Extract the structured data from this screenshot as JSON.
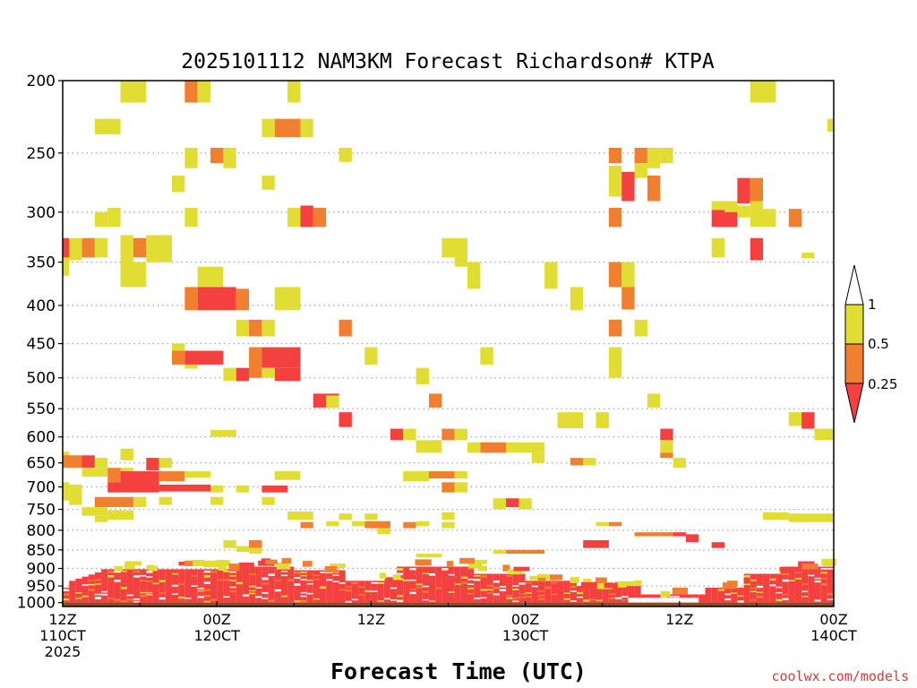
{
  "chart_data": {
    "type": "heatmap",
    "title": "2025101112 NAM3KM Forecast Richardson# KTPA",
    "xlabel": "Forecast Time (UTC)",
    "ylabel": "",
    "credit": "coolwx.com/models",
    "x_unit": "forecast hour",
    "xlim": [
      0,
      60
    ],
    "ylim": [
      200,
      1012
    ],
    "y_scale": "log-pressure (inverted)",
    "y_ticks": [
      200,
      250,
      300,
      350,
      400,
      450,
      500,
      550,
      600,
      650,
      700,
      750,
      800,
      850,
      900,
      950,
      1000
    ],
    "x_ticks": [
      {
        "hour": 0,
        "lines": [
          "12Z",
          "110CT",
          "2025"
        ]
      },
      {
        "hour": 12,
        "lines": [
          "00Z",
          "120CT"
        ]
      },
      {
        "hour": 24,
        "lines": [
          "12Z"
        ]
      },
      {
        "hour": 36,
        "lines": [
          "00Z",
          "130CT"
        ]
      },
      {
        "hour": 48,
        "lines": [
          "12Z"
        ]
      },
      {
        "hour": 60,
        "lines": [
          "00Z",
          "140CT"
        ]
      }
    ],
    "colors": {
      "lt025": "#f54040",
      "c025_05": "#f08030",
      "c05_1": "#e1dd32",
      "ground": "#8b4c28",
      "grid": "#9a9a9a"
    },
    "legend": {
      "labels": [
        "1",
        "0.5",
        "0.25"
      ],
      "bins": [
        {
          "name": "< 0.25",
          "color": "#f54040"
        },
        {
          "name": "0.25 - 0.5",
          "color": "#f08030"
        },
        {
          "name": "0.5 - 1",
          "color": "#e1dd32"
        },
        {
          "name": "> 1",
          "color": "#ffffff"
        }
      ]
    },
    "ground_level_hPa": 1000,
    "category_key": {
      "r": "Ri < 0.25",
      "o": "0.25 <= Ri < 0.5",
      "y": "0.5 <= Ri < 1"
    },
    "cells": [
      [
        "y",
        4.5,
        6.5,
        200,
        214
      ],
      [
        "o",
        9.5,
        10.5,
        200,
        214
      ],
      [
        "y",
        10.5,
        11.5,
        200,
        214
      ],
      [
        "y",
        17.5,
        18.5,
        200,
        214
      ],
      [
        "y",
        53.5,
        55.5,
        200,
        214
      ],
      [
        "y",
        2.5,
        4.5,
        225,
        236
      ],
      [
        "y",
        15.5,
        16.5,
        225,
        238
      ],
      [
        "o",
        16.5,
        18.5,
        225,
        238
      ],
      [
        "y",
        18.5,
        19.5,
        225,
        238
      ],
      [
        "y",
        59.5,
        60,
        225,
        234
      ],
      [
        "y",
        9.5,
        10.5,
        246,
        262
      ],
      [
        "o",
        11.5,
        12.5,
        246,
        258
      ],
      [
        "y",
        12.5,
        13.5,
        246,
        262
      ],
      [
        "y",
        21.5,
        22.5,
        246,
        257
      ],
      [
        "y",
        8.5,
        9.5,
        268,
        282
      ],
      [
        "y",
        15.5,
        16.5,
        268,
        280
      ],
      [
        "o",
        42.5,
        43.5,
        246,
        258
      ],
      [
        "y",
        42.5,
        43.5,
        260,
        286
      ],
      [
        "r",
        43.5,
        44.5,
        265,
        290
      ],
      [
        "o",
        44.5,
        45.5,
        246,
        258
      ],
      [
        "y",
        44.5,
        45.5,
        258,
        270
      ],
      [
        "o",
        45.5,
        46.5,
        268,
        290
      ],
      [
        "y",
        45.5,
        46.5,
        246,
        262
      ],
      [
        "y",
        46.5,
        47.5,
        246,
        258
      ],
      [
        "y",
        50.5,
        52.5,
        290,
        298
      ],
      [
        "r",
        50.5,
        52.5,
        298,
        314
      ],
      [
        "y",
        51.5,
        52.5,
        290,
        300
      ],
      [
        "r",
        52.5,
        53.5,
        270,
        292
      ],
      [
        "o",
        53.5,
        54.5,
        270,
        290
      ],
      [
        "y",
        52.5,
        53.5,
        294,
        305
      ],
      [
        "y",
        53.5,
        54.5,
        290,
        314
      ],
      [
        "y",
        54.5,
        55.5,
        297,
        314
      ],
      [
        "o",
        56.5,
        57.5,
        297,
        314
      ],
      [
        "y",
        2.5,
        3.5,
        300,
        314
      ],
      [
        "y",
        3.5,
        4.5,
        296,
        314
      ],
      [
        "y",
        9.5,
        10.5,
        296,
        314
      ],
      [
        "y",
        17.5,
        18.5,
        296,
        314
      ],
      [
        "r",
        18.5,
        19.5,
        294,
        314
      ],
      [
        "o",
        19.5,
        20.5,
        296,
        314
      ],
      [
        "o",
        42.5,
        43.5,
        296,
        314
      ],
      [
        "r",
        0,
        0.5,
        325,
        345
      ],
      [
        "y",
        0.5,
        1.5,
        325,
        348
      ],
      [
        "o",
        1.5,
        2.5,
        325,
        345
      ],
      [
        "y",
        2.5,
        3.5,
        325,
        345
      ],
      [
        "y",
        4.5,
        5.5,
        322,
        350
      ],
      [
        "o",
        5.5,
        6.5,
        325,
        345
      ],
      [
        "y",
        6.5,
        8.5,
        322,
        350
      ],
      [
        "y",
        0,
        0.5,
        345,
        365
      ],
      [
        "y",
        4.5,
        6.5,
        350,
        378
      ],
      [
        "y",
        29.5,
        31.5,
        325,
        345
      ],
      [
        "y",
        30.5,
        31.5,
        345,
        355
      ],
      [
        "y",
        31.5,
        32.5,
        350,
        380
      ],
      [
        "y",
        37.5,
        38.5,
        350,
        380
      ],
      [
        "y",
        50.5,
        51.5,
        325,
        345
      ],
      [
        "r",
        53.5,
        54.5,
        325,
        348
      ],
      [
        "y",
        57.5,
        58.5,
        340,
        346
      ],
      [
        "o",
        42.5,
        43.5,
        350,
        378
      ],
      [
        "y",
        43.5,
        44.5,
        350,
        380
      ],
      [
        "o",
        43.5,
        44.5,
        378,
        405
      ],
      [
        "y",
        10.5,
        12.5,
        355,
        378
      ],
      [
        "o",
        9.5,
        10.5,
        378,
        406
      ],
      [
        "r",
        10.5,
        13.5,
        378,
        406
      ],
      [
        "o",
        13.5,
        14.5,
        380,
        406
      ],
      [
        "y",
        16.5,
        18.5,
        378,
        406
      ],
      [
        "y",
        39.5,
        40.5,
        378,
        406
      ],
      [
        "y",
        13.5,
        14.5,
        418,
        440
      ],
      [
        "o",
        14.5,
        15.5,
        418,
        440
      ],
      [
        "y",
        15.5,
        16.5,
        418,
        440
      ],
      [
        "o",
        21.5,
        22.5,
        418,
        440
      ],
      [
        "y",
        42.5,
        43.5,
        418,
        440
      ],
      [
        "o",
        42.5,
        43.5,
        418,
        440
      ],
      [
        "y",
        44.5,
        45.5,
        418,
        440
      ],
      [
        "y",
        8.5,
        9.5,
        450,
        460
      ],
      [
        "o",
        8.5,
        9.5,
        460,
        480
      ],
      [
        "r",
        9.5,
        12.5,
        460,
        480
      ],
      [
        "y",
        9.5,
        10.5,
        480,
        486
      ],
      [
        "o",
        14.5,
        15.5,
        455,
        500
      ],
      [
        "r",
        15.5,
        18.5,
        455,
        485
      ],
      [
        "r",
        16.5,
        18.5,
        485,
        505
      ],
      [
        "y",
        12.5,
        13.5,
        485,
        505
      ],
      [
        "r",
        13.5,
        14.5,
        485,
        505
      ],
      [
        "y",
        15.5,
        16.5,
        485,
        500
      ],
      [
        "y",
        23.5,
        24.5,
        455,
        480
      ],
      [
        "y",
        32.5,
        33.5,
        455,
        480
      ],
      [
        "y",
        42.5,
        43.5,
        455,
        500
      ],
      [
        "y",
        27.5,
        28.5,
        485,
        510
      ],
      [
        "r",
        19.5,
        21.5,
        525,
        548
      ],
      [
        "y",
        20.5,
        21.5,
        528,
        548
      ],
      [
        "o",
        28.5,
        29.5,
        525,
        548
      ],
      [
        "r",
        21.5,
        22.5,
        556,
        582
      ],
      [
        "y",
        45.5,
        46.5,
        525,
        548
      ],
      [
        "y",
        38.5,
        40.5,
        556,
        584
      ],
      [
        "y",
        41.5,
        42.5,
        556,
        584
      ],
      [
        "y",
        56.5,
        57.5,
        556,
        580
      ],
      [
        "r",
        57.5,
        58.5,
        556,
        585
      ],
      [
        "y",
        11.5,
        13.5,
        587,
        600
      ],
      [
        "r",
        25.5,
        26.5,
        585,
        606
      ],
      [
        "y",
        26.5,
        27.5,
        585,
        606
      ],
      [
        "o",
        29.5,
        30.5,
        585,
        606
      ],
      [
        "y",
        30.5,
        31.5,
        585,
        606
      ],
      [
        "r",
        46.5,
        47.5,
        585,
        606
      ],
      [
        "y",
        58.5,
        60,
        585,
        606
      ],
      [
        "y",
        27.5,
        29.5,
        606,
        630
      ],
      [
        "y",
        31.5,
        32.5,
        610,
        630
      ],
      [
        "o",
        32.5,
        34.5,
        610,
        630
      ],
      [
        "y",
        34.5,
        37.5,
        610,
        630
      ],
      [
        "y",
        36.5,
        37.5,
        630,
        650
      ],
      [
        "o",
        39.5,
        40.5,
        640,
        655
      ],
      [
        "y",
        40.5,
        41.5,
        640,
        655
      ],
      [
        "y",
        46.5,
        47.5,
        606,
        630
      ],
      [
        "o",
        46.5,
        47.5,
        630,
        640
      ],
      [
        "y",
        47.5,
        48.5,
        640,
        660
      ],
      [
        "y",
        0,
        0.5,
        628,
        640
      ],
      [
        "o",
        0,
        1.5,
        635,
        660
      ],
      [
        "r",
        1.5,
        2.5,
        635,
        660
      ],
      [
        "y",
        2.5,
        3.5,
        640,
        660
      ],
      [
        "y",
        4.5,
        5.5,
        622,
        645
      ],
      [
        "r",
        6.5,
        7.5,
        640,
        665
      ],
      [
        "y",
        7.5,
        8.5,
        640,
        660
      ],
      [
        "y",
        1.5,
        3.5,
        660,
        678
      ],
      [
        "o",
        3.5,
        4.5,
        660,
        690
      ],
      [
        "y",
        4.5,
        5.5,
        660,
        678
      ],
      [
        "r",
        4.5,
        7.5,
        667,
        702
      ],
      [
        "o",
        7.5,
        9.5,
        667,
        688
      ],
      [
        "y",
        9.5,
        11.5,
        667,
        680
      ],
      [
        "y",
        0,
        0.5,
        690,
        730
      ],
      [
        "y",
        0.5,
        1.5,
        695,
        740
      ],
      [
        "r",
        3.5,
        7.5,
        690,
        712
      ],
      [
        "r",
        7.5,
        11.5,
        695,
        710
      ],
      [
        "y",
        11.5,
        12.5,
        697,
        712
      ],
      [
        "y",
        13.5,
        14.5,
        697,
        712
      ],
      [
        "r",
        15.5,
        17.5,
        697,
        712
      ],
      [
        "y",
        16.5,
        18.5,
        667,
        685
      ],
      [
        "y",
        26.5,
        28.5,
        667,
        688
      ],
      [
        "o",
        28.5,
        30.5,
        667,
        682
      ],
      [
        "y",
        30.5,
        31.5,
        667,
        682
      ],
      [
        "o",
        29.5,
        30.5,
        690,
        712
      ],
      [
        "y",
        30.5,
        31.5,
        690,
        712
      ],
      [
        "o",
        2.5,
        5.5,
        722,
        745
      ],
      [
        "y",
        5.5,
        6.5,
        722,
        745
      ],
      [
        "y",
        7.5,
        8.5,
        722,
        740
      ],
      [
        "y",
        11.5,
        12.5,
        722,
        740
      ],
      [
        "y",
        15.5,
        16.5,
        722,
        740
      ],
      [
        "y",
        1.5,
        3.5,
        745,
        765
      ],
      [
        "y",
        2.5,
        3.5,
        765,
        780
      ],
      [
        "y",
        3.5,
        5.5,
        752,
        775
      ],
      [
        "y",
        33.5,
        34.5,
        725,
        750
      ],
      [
        "r",
        34.5,
        35.5,
        725,
        745
      ],
      [
        "y",
        35.5,
        36.5,
        725,
        750
      ],
      [
        "y",
        17.5,
        19.5,
        755,
        775
      ],
      [
        "y",
        21.5,
        22.5,
        760,
        775
      ],
      [
        "y",
        23.5,
        24.5,
        760,
        775
      ],
      [
        "y",
        29.5,
        30.5,
        757,
        775
      ],
      [
        "y",
        54.5,
        56.5,
        757,
        775
      ],
      [
        "y",
        56.5,
        60,
        760,
        780
      ],
      [
        "o",
        18.5,
        19.5,
        780,
        795
      ],
      [
        "y",
        20.5,
        21.5,
        778,
        790
      ],
      [
        "y",
        22.5,
        23.5,
        778,
        790
      ],
      [
        "o",
        23.5,
        25.5,
        778,
        795
      ],
      [
        "y",
        24.5,
        25.5,
        795,
        810
      ],
      [
        "o",
        26.5,
        27.5,
        780,
        795
      ],
      [
        "y",
        27.5,
        28.5,
        778,
        790
      ],
      [
        "y",
        29.5,
        30.5,
        780,
        795
      ],
      [
        "y",
        41.5,
        42.5,
        780,
        790
      ],
      [
        "o",
        42.5,
        43.5,
        780,
        790
      ],
      [
        "o",
        44.5,
        47.5,
        805,
        815
      ],
      [
        "r",
        47.5,
        48.5,
        805,
        815
      ],
      [
        "r",
        48.5,
        49.5,
        810,
        830
      ],
      [
        "r",
        50.5,
        51.5,
        830,
        845
      ],
      [
        "y",
        12.5,
        13.5,
        825,
        845
      ],
      [
        "y",
        13.5,
        14.5,
        840,
        855
      ],
      [
        "o",
        14.5,
        15.5,
        825,
        845
      ],
      [
        "y",
        14.5,
        15.5,
        845,
        860
      ],
      [
        "r",
        40.5,
        42.5,
        825,
        845
      ],
      [
        "y",
        33.5,
        34.5,
        850,
        860
      ],
      [
        "o",
        34.5,
        37.5,
        850,
        860
      ],
      [
        "y",
        27.5,
        29.5,
        860,
        870
      ]
    ],
    "low_layer_note": "Dense layer of Ri < 0.25 (red) from about 900 to 1000 hPa throughout the forecast, interspersed with orange and yellow bands; below-ground shading at 1000 hPa."
  }
}
